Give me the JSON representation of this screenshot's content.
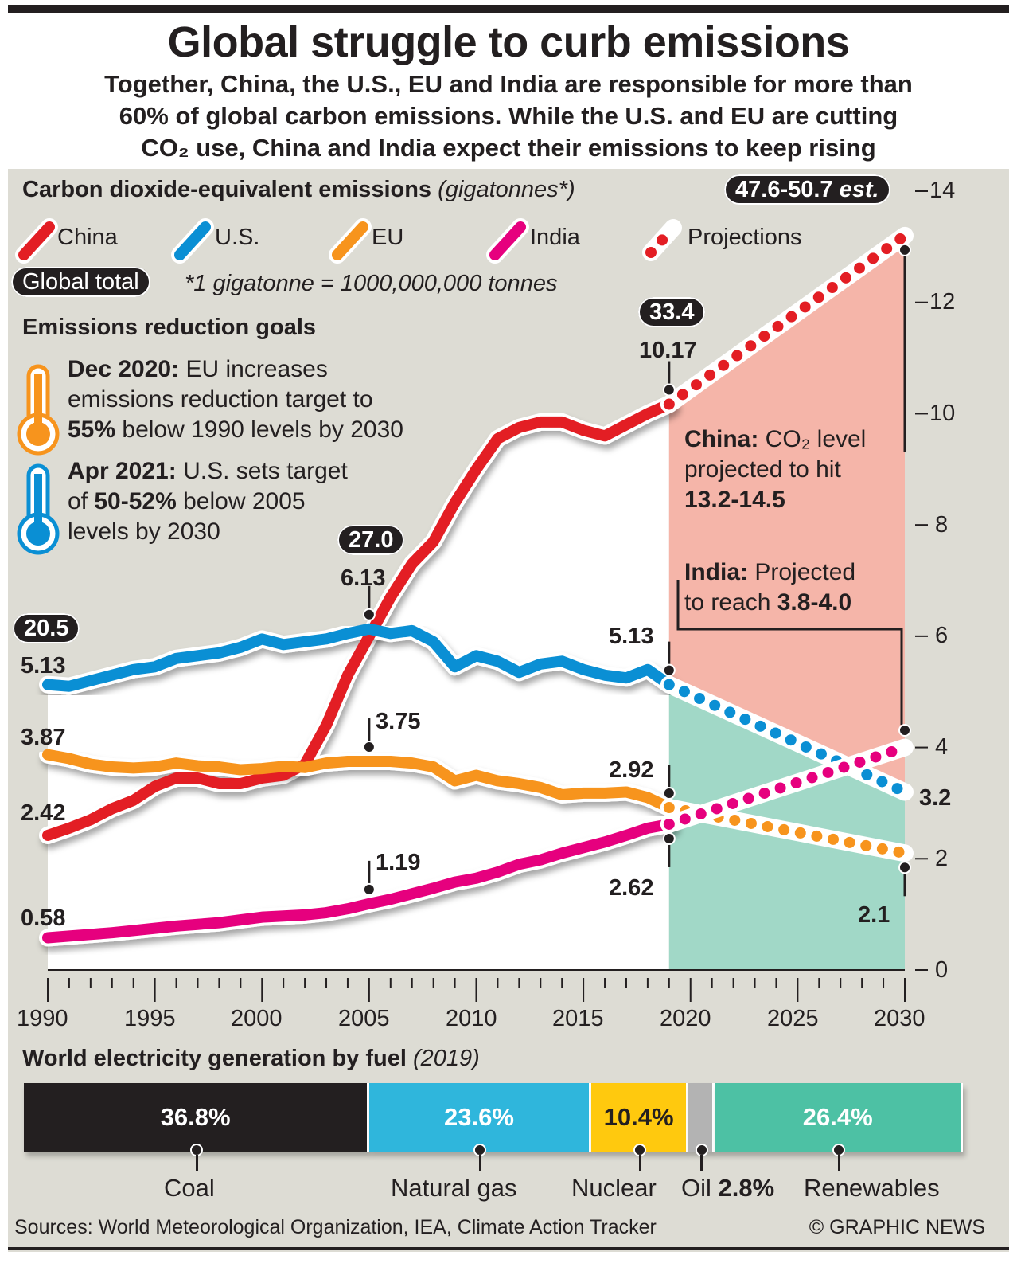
{
  "title": "Global struggle to curb emissions",
  "subtitle": [
    "Together, China, the U.S., EU and India are responsible for more than",
    "60% of global carbon emissions. While the U.S. and EU are cutting",
    "CO₂ use, China and India expect their emissions to keep rising"
  ],
  "chart_data": [
    {
      "type": "line",
      "title": "Carbon dioxide-equivalent emissions",
      "title_unit": "(gigatonnes*)",
      "footnote": "*1 gigatonne = 1000,000,000 tonnes",
      "global_total_label": "Global total",
      "x": [
        1990,
        1991,
        1992,
        1993,
        1994,
        1995,
        1996,
        1997,
        1998,
        1999,
        2000,
        2001,
        2002,
        2003,
        2004,
        2005,
        2006,
        2007,
        2008,
        2009,
        2010,
        2011,
        2012,
        2013,
        2014,
        2015,
        2016,
        2017,
        2018,
        2019
      ],
      "series": [
        {
          "name": "China",
          "color": "#e31e24",
          "values": [
            2.42,
            2.55,
            2.7,
            2.9,
            3.05,
            3.3,
            3.45,
            3.45,
            3.35,
            3.35,
            3.45,
            3.5,
            3.7,
            4.4,
            5.3,
            6.0,
            6.7,
            7.3,
            7.7,
            8.4,
            9.0,
            9.55,
            9.75,
            9.85,
            9.85,
            9.7,
            9.6,
            9.8,
            10.0,
            10.17
          ],
          "projection": {
            "year": 2030,
            "value": 13.2
          }
        },
        {
          "name": "U.S.",
          "color": "#0a8fd4",
          "values": [
            5.13,
            5.1,
            5.2,
            5.3,
            5.4,
            5.45,
            5.6,
            5.65,
            5.7,
            5.8,
            5.95,
            5.85,
            5.9,
            5.95,
            6.05,
            6.13,
            6.05,
            6.1,
            5.9,
            5.45,
            5.65,
            5.55,
            5.35,
            5.5,
            5.55,
            5.4,
            5.3,
            5.25,
            5.4,
            5.13
          ],
          "projection": {
            "year": 2030,
            "value": 3.2
          }
        },
        {
          "name": "EU",
          "color": "#f7941d",
          "values": [
            3.87,
            3.8,
            3.7,
            3.65,
            3.63,
            3.65,
            3.72,
            3.67,
            3.65,
            3.6,
            3.62,
            3.66,
            3.64,
            3.72,
            3.75,
            3.75,
            3.75,
            3.72,
            3.65,
            3.4,
            3.5,
            3.4,
            3.35,
            3.28,
            3.15,
            3.18,
            3.18,
            3.2,
            3.1,
            2.92
          ],
          "projection": {
            "year": 2030,
            "value": 2.1
          }
        },
        {
          "name": "India",
          "color": "#e6007e",
          "values": [
            0.58,
            0.61,
            0.64,
            0.67,
            0.71,
            0.75,
            0.79,
            0.82,
            0.85,
            0.9,
            0.95,
            0.97,
            0.99,
            1.03,
            1.1,
            1.19,
            1.27,
            1.37,
            1.47,
            1.58,
            1.65,
            1.76,
            1.9,
            1.98,
            2.1,
            2.2,
            2.3,
            2.42,
            2.55,
            2.62
          ],
          "projection": {
            "year": 2030,
            "value": 4.0
          }
        }
      ],
      "projections_label": "Projections",
      "xticks": [
        "1990",
        "1995",
        "2000",
        "2005",
        "2010",
        "2015",
        "2020",
        "2025",
        "2030"
      ],
      "yticks": [
        "0",
        "2",
        "4",
        "6",
        "8",
        "10",
        "12",
        "14"
      ],
      "xlim": [
        1990,
        2030
      ],
      "ylim": [
        0,
        14
      ],
      "labels": {
        "us1990": "5.13",
        "eu1990": "3.87",
        "china1990": "2.42",
        "india1990": "0.58",
        "us2005": "6.13",
        "eu2005": "3.75",
        "india2005": "1.19",
        "china2019": "10.17",
        "us2019": "5.13",
        "eu2019": "2.92",
        "india2019": "2.62",
        "us2030": "3.2",
        "eu2030": "2.1"
      },
      "global_totals": {
        "y1990": "20.5",
        "y2005": "27.0",
        "y2019": "33.4",
        "y2030_prefix": "47.6-50.7",
        "y2030_suffix": "est."
      },
      "annotations": {
        "china_bold": "China:",
        "china_text1": "CO₂ level",
        "china_text2": "projected to hit",
        "china_range": "13.2-14.5",
        "india_bold": "India:",
        "india_text1": "Projected",
        "india_text2": "to reach",
        "india_range": "3.8-4.0"
      },
      "colors": {
        "projection_shade_upper": "#f5b5a9",
        "projection_shade_lower": "#a1d8c7",
        "background": "#dddcd4"
      }
    },
    {
      "type": "bar",
      "title": "World electricity generation by fuel",
      "title_year": "(2019)",
      "stacked": true,
      "categories": [
        "Coal",
        "Natural gas",
        "Nuclear",
        "Oil",
        "Renewables"
      ],
      "values": [
        36.8,
        23.6,
        10.4,
        2.8,
        26.4
      ],
      "value_labels": [
        "36.8%",
        "23.6%",
        "10.4%",
        "2.8%",
        "26.4%"
      ],
      "colors": [
        "#231f20",
        "#2fb6dc",
        "#ffc90e",
        "#b3b3b3",
        "#4dc1a4"
      ]
    }
  ],
  "goals": {
    "heading": "Emissions reduction goals",
    "eu": {
      "date": "Dec 2020:",
      "l1": "EU increases",
      "l2": "emissions reduction target to",
      "l3b": "55%",
      "l3": "below 1990 levels by 2030",
      "icon": "thermometer-icon",
      "color": "#f7941d"
    },
    "us": {
      "date": "Apr 2021:",
      "l1": "U.S. sets target",
      "l2a": "of",
      "l2b": "50-52%",
      "l2c": "below 2005",
      "l3": "levels by 2030",
      "icon": "thermometer-icon",
      "color": "#0a8fd4"
    }
  },
  "sources": "Sources: World Meteorological Organization, IEA, Climate Action Tracker",
  "credit": "© GRAPHIC NEWS"
}
